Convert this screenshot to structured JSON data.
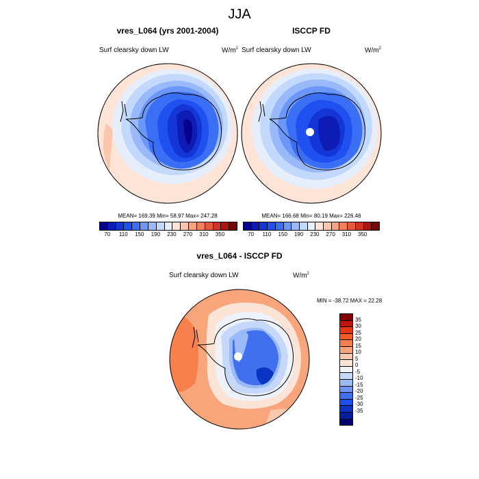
{
  "figure": {
    "season": "JJA"
  },
  "panels": [
    {
      "title": "vres_L064 (yrs 2001-2004)",
      "left_label": "Surf clearsky down LW",
      "units": "W/m",
      "units_sup": "2",
      "stats": "MEAN= 169.39  Min=  58.97  Max= 247.28"
    },
    {
      "title": "ISCCP FD",
      "left_label": "Surf clearsky down LW",
      "units": "W/m",
      "units_sup": "2",
      "stats": "MEAN= 166.68  Min=  80.19  Max= 226.46"
    },
    {
      "title": "vres_L064 - ISCCP FD",
      "left_label": "Surf clearsky down LW",
      "units": "W/m",
      "units_sup": "2",
      "stats": "MIN = -38.72 MAX =  22.28"
    }
  ],
  "colorbar_main": {
    "colors": [
      "#08008a",
      "#0c1cb4",
      "#1536d6",
      "#1f50f0",
      "#3a6ef5",
      "#6a97f8",
      "#9ab9fb",
      "#c3d8fd",
      "#e6eefb",
      "#fde4d6",
      "#fbc6ab",
      "#f8a47e",
      "#f28058",
      "#e8583a",
      "#d23222",
      "#b01410",
      "#7a0606"
    ],
    "ticks": [
      "70",
      "110",
      "150",
      "190",
      "230",
      "270",
      "310",
      "350"
    ]
  },
  "colorbar_diff": {
    "colors": [
      "#830000",
      "#c0140a",
      "#e53714",
      "#f35a28",
      "#f7804c",
      "#f8a57c",
      "#fac8ad",
      "#fbe4d6",
      "#eef3fb",
      "#c5d8fa",
      "#9bbaf8",
      "#6d95f4",
      "#4070ee",
      "#1f4fe8",
      "#0b33c4",
      "#071f9e",
      "#05006e"
    ],
    "ticks": [
      "35",
      "30",
      "25",
      "20",
      "15",
      "10",
      "5",
      "0",
      "-5",
      "-10",
      "-15",
      "-20",
      "-25",
      "-30",
      "-35"
    ]
  }
}
